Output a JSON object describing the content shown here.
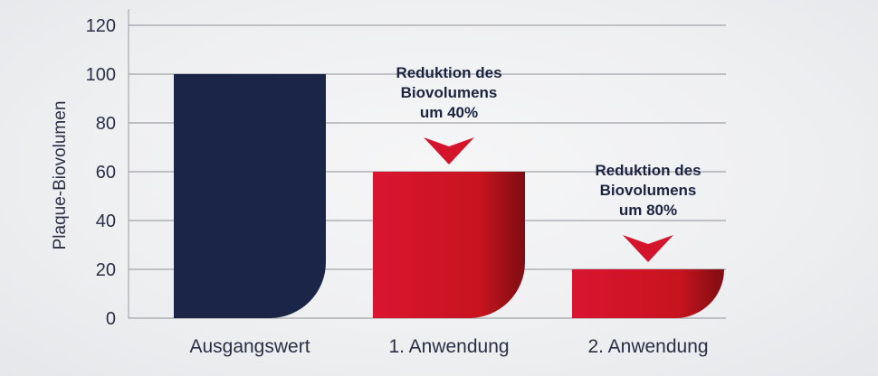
{
  "chart_data": {
    "type": "bar",
    "categories": [
      "Ausgangswert",
      "1. Anwendung",
      "2. Anwendung"
    ],
    "values": [
      100,
      60,
      20
    ],
    "ylabel": "Plaque-Biovolumen",
    "xlabel": "",
    "ylim": [
      0,
      120
    ],
    "yticks": [
      0,
      20,
      40,
      60,
      80,
      100,
      120
    ],
    "grid": true,
    "colors": [
      "#1b2547",
      "#d4142b",
      "#d4142b"
    ],
    "annotations": [
      {
        "category": "1. Anwendung",
        "lines": [
          "Reduktion des",
          "Biovolumens",
          "um 40%"
        ]
      },
      {
        "category": "2. Anwendung",
        "lines": [
          "Reduktion des",
          "Biovolumens",
          "um 80%"
        ]
      }
    ]
  }
}
